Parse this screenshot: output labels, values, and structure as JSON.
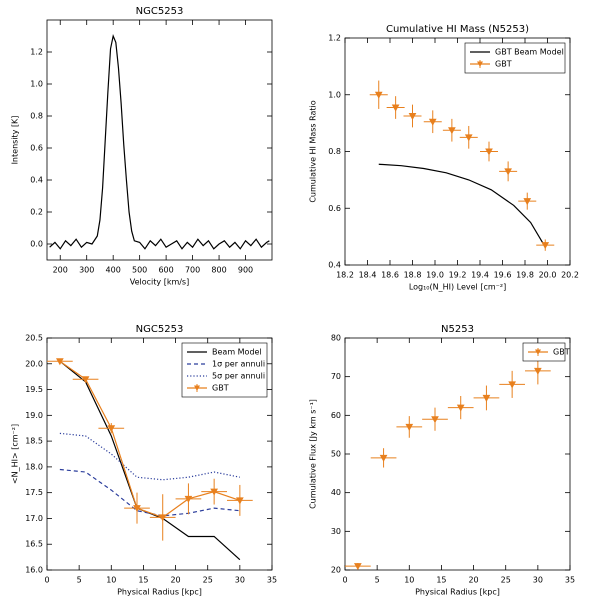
{
  "chart_data": [
    {
      "type": "line",
      "title": "NGC5253",
      "xlabel": "Velocity [km/s]",
      "ylabel": "Intensity [K]",
      "color": "#000000",
      "x": [
        160,
        180,
        200,
        220,
        240,
        260,
        280,
        300,
        320,
        340,
        350,
        360,
        370,
        380,
        390,
        400,
        410,
        420,
        430,
        440,
        450,
        460,
        470,
        480,
        500,
        520,
        540,
        560,
        580,
        600,
        620,
        640,
        660,
        680,
        700,
        720,
        740,
        760,
        780,
        800,
        820,
        840,
        860,
        880,
        900,
        920,
        940,
        960,
        980,
        990
      ],
      "values": [
        -0.02,
        0.01,
        -0.03,
        0.02,
        -0.01,
        0.03,
        -0.02,
        0.01,
        0.0,
        0.05,
        0.15,
        0.35,
        0.65,
        0.95,
        1.22,
        1.3,
        1.26,
        1.1,
        0.88,
        0.62,
        0.4,
        0.2,
        0.08,
        0.02,
        0.01,
        -0.03,
        0.02,
        -0.01,
        0.03,
        -0.02,
        0.0,
        0.02,
        -0.03,
        0.01,
        -0.02,
        0.03,
        -0.01,
        0.02,
        -0.03,
        0.0,
        0.02,
        -0.02,
        0.01,
        -0.03,
        0.02,
        -0.01,
        0.03,
        -0.02,
        0.01,
        0.02
      ],
      "xlim": [
        150,
        1000
      ],
      "xticks": [
        200,
        300,
        400,
        500,
        600,
        700,
        800,
        900
      ],
      "ylim": [
        -0.1,
        1.4
      ],
      "yticks": [
        {
          "value": 0,
          "label": "0.0"
        },
        0.2,
        0.4,
        0.6,
        0.8,
        {
          "value": 1,
          "label": "1.0"
        },
        1.2
      ]
    },
    {
      "type": "line",
      "title": "Cumulative HI Mass (N5253)",
      "xlabel": "Log₁₀(N_HI) Level [cm⁻²]",
      "ylabel": "Cumulative HI Mass Ratio",
      "legend": "upper right",
      "series": [
        {
          "name": "GBT Beam Model",
          "color": "#000000",
          "style": "line",
          "x": [
            18.5,
            18.7,
            18.9,
            19.1,
            19.3,
            19.5,
            19.7,
            19.85,
            19.97
          ],
          "values": [
            0.755,
            0.75,
            0.74,
            0.725,
            0.7,
            0.665,
            0.61,
            0.55,
            0.47
          ]
        },
        {
          "name": "GBT",
          "color": "#e8801e",
          "style": "errorbar",
          "x": [
            18.5,
            18.65,
            18.8,
            18.98,
            19.15,
            19.3,
            19.48,
            19.65,
            19.82,
            19.98
          ],
          "values": [
            1.0,
            0.955,
            0.925,
            0.905,
            0.875,
            0.85,
            0.8,
            0.73,
            0.625,
            0.47
          ],
          "errors": [
            0.05,
            0.04,
            0.04,
            0.04,
            0.04,
            0.04,
            0.035,
            0.035,
            0.03,
            0.02
          ],
          "x_errors": [
            0.08,
            0.08,
            0.08,
            0.08,
            0.08,
            0.08,
            0.08,
            0.08,
            0.08,
            0.08
          ]
        }
      ],
      "xlim": [
        18.2,
        20.2
      ],
      "xticks": [
        18.2,
        18.4,
        18.6,
        18.8,
        {
          "value": 19,
          "label": "19.0"
        },
        19.2,
        19.4,
        19.6,
        19.8,
        {
          "value": 20,
          "label": "20.0"
        },
        20.2
      ],
      "ylim": [
        0.4,
        1.2
      ],
      "yticks": [
        0.4,
        0.6,
        0.8,
        {
          "value": 1,
          "label": "1.0"
        },
        1.2
      ]
    },
    {
      "type": "line",
      "title": "NGC5253",
      "xlabel": "Physical Radius [kpc]",
      "ylabel": "<N_HI> [cm⁻²]",
      "legend": "upper right",
      "series": [
        {
          "name": "Beam Model",
          "color": "#000000",
          "style": "line",
          "x": [
            2,
            6,
            10,
            14,
            18,
            22,
            26,
            30
          ],
          "values": [
            20.05,
            19.65,
            18.6,
            17.2,
            17.0,
            16.65,
            16.65,
            16.2
          ]
        },
        {
          "name": "1σ per annuli",
          "color": "#2b3d9c",
          "style": "dashed",
          "x": [
            2,
            6,
            10,
            14,
            18,
            22,
            26,
            30
          ],
          "values": [
            17.95,
            17.9,
            17.55,
            17.15,
            17.05,
            17.1,
            17.2,
            17.15
          ]
        },
        {
          "name": "5σ per annuli",
          "color": "#2b3d9c",
          "style": "dotted",
          "x": [
            2,
            6,
            10,
            14,
            18,
            22,
            26,
            30
          ],
          "values": [
            18.65,
            18.6,
            18.25,
            17.8,
            17.75,
            17.8,
            17.9,
            17.8
          ]
        },
        {
          "name": "GBT",
          "color": "#e8801e",
          "style": "errorbar-line",
          "x": [
            2,
            6,
            10,
            14,
            18,
            22,
            26,
            30
          ],
          "values": [
            20.05,
            19.7,
            18.75,
            17.2,
            17.02,
            17.38,
            17.52,
            17.35
          ],
          "errors": [
            0.05,
            0.05,
            0.1,
            0.3,
            0.45,
            0.3,
            0.25,
            0.3
          ],
          "x_errors": [
            2,
            2,
            2,
            2,
            2,
            2,
            2,
            2
          ]
        }
      ],
      "xlim": [
        0,
        35
      ],
      "xticks": [
        0,
        5,
        10,
        15,
        20,
        25,
        30,
        35
      ],
      "ylim": [
        16,
        20.5
      ],
      "yticks": [
        {
          "value": 16,
          "label": "16.0"
        },
        16.5,
        {
          "value": 17,
          "label": "17.0"
        },
        17.5,
        {
          "value": 18,
          "label": "18.0"
        },
        18.5,
        {
          "value": 19,
          "label": "19.0"
        },
        19.5,
        {
          "value": 20,
          "label": "20.0"
        },
        20.5
      ]
    },
    {
      "type": "line",
      "title": "N5253",
      "xlabel": "Physical Radius [kpc]",
      "ylabel": "Cumulative Flux [Jy km s⁻¹]",
      "legend": "upper right",
      "series": [
        {
          "name": "GBT",
          "color": "#e8801e",
          "style": "errorbar",
          "x": [
            2,
            6,
            10,
            14,
            18,
            22,
            26,
            30
          ],
          "values": [
            21,
            49,
            57,
            59,
            62,
            64.5,
            68,
            71.5
          ],
          "errors": [
            0.8,
            2.5,
            2.8,
            3,
            3,
            3.2,
            3.5,
            3.5
          ],
          "x_errors": [
            2,
            2,
            2,
            2,
            2,
            2,
            2,
            2
          ]
        }
      ],
      "xlim": [
        0,
        35
      ],
      "xticks": [
        0,
        5,
        10,
        15,
        20,
        25,
        30,
        35
      ],
      "ylim": [
        20,
        80
      ],
      "yticks": [
        20,
        30,
        40,
        50,
        60,
        70,
        80
      ]
    }
  ]
}
